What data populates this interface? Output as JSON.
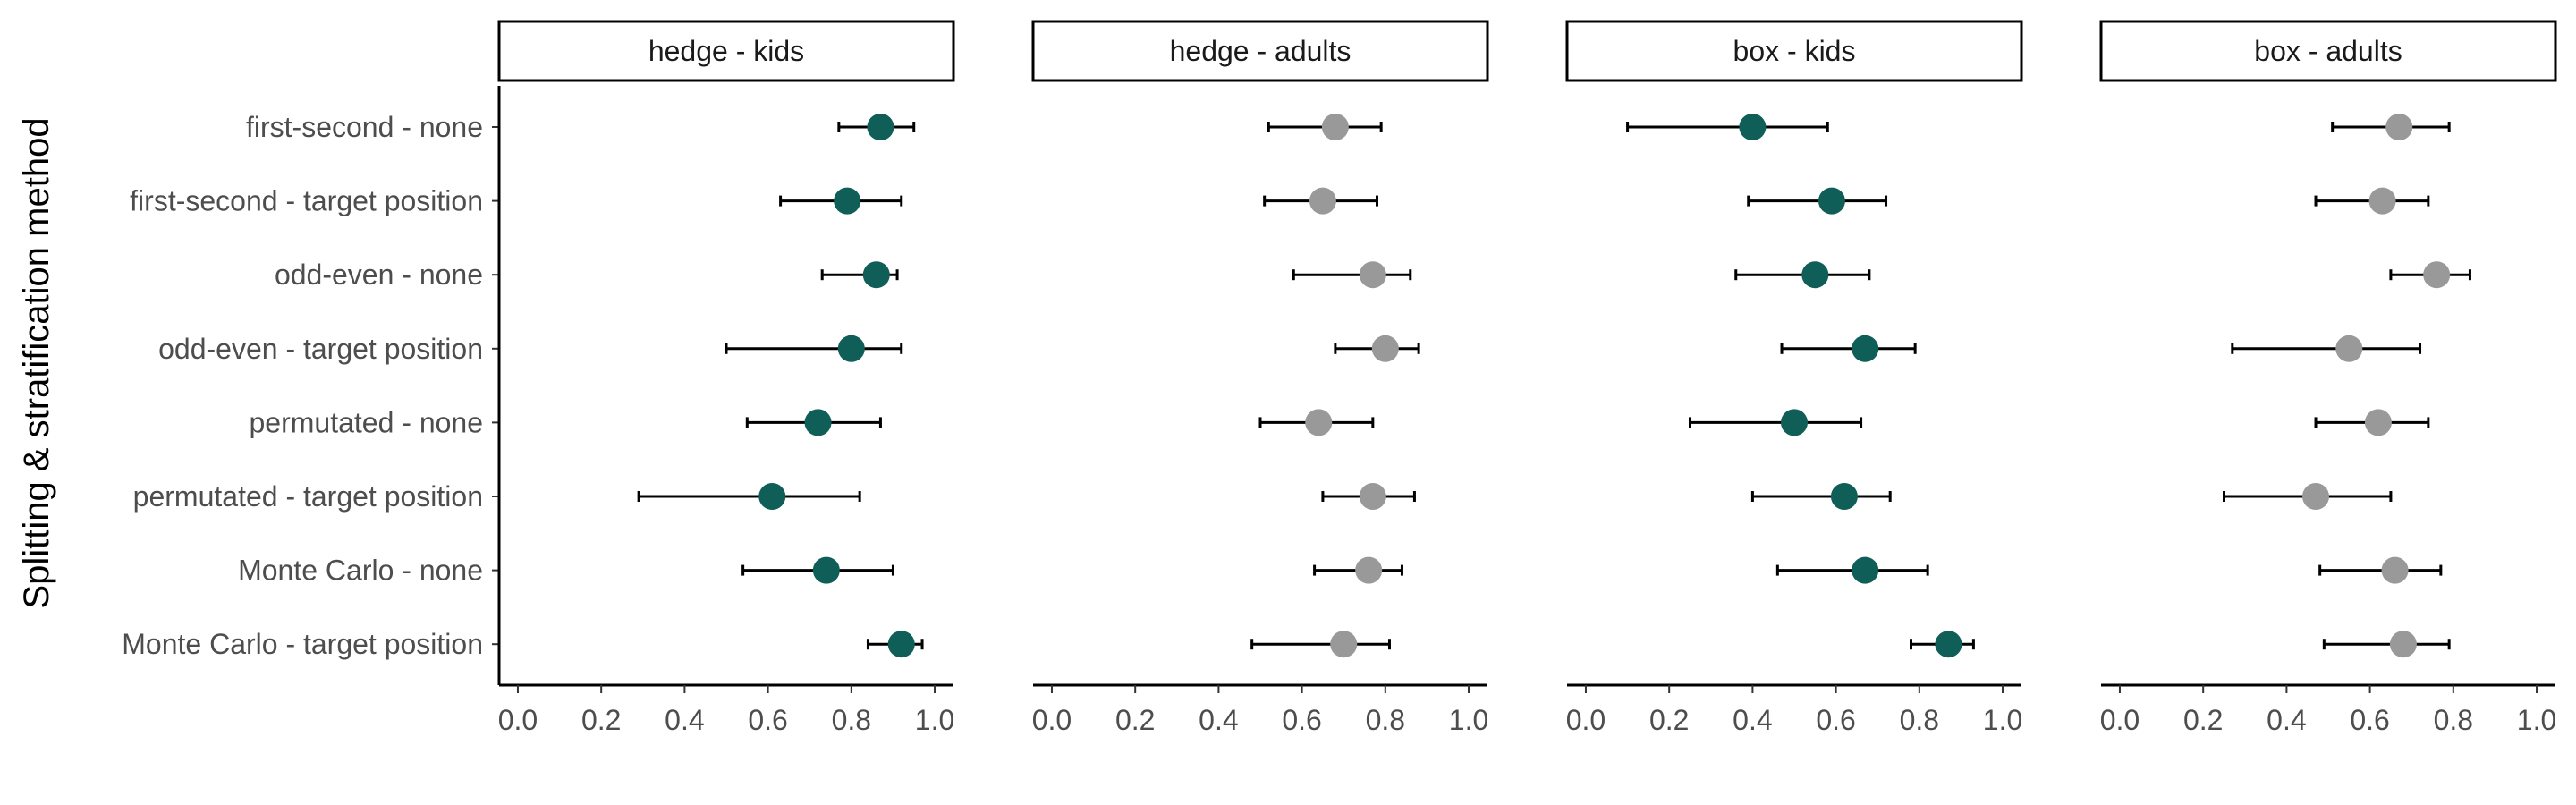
{
  "chart_data": {
    "type": "scatter",
    "ylabel": "Splitting & stratification method",
    "xlabel": "",
    "xlim": [
      0,
      1
    ],
    "x_ticks": [
      "0.0",
      "0.2",
      "0.4",
      "0.6",
      "0.8",
      "1.0"
    ],
    "categories": [
      "first-second - none",
      "first-second - target position",
      "odd-even - none",
      "odd-even - target position",
      "permutated - none",
      "permutated - target position",
      "Monte Carlo - none",
      "Monte Carlo - target position"
    ],
    "colors": {
      "kids": "#0f5e57",
      "adults": "#999999"
    },
    "grid": false,
    "legend": "none",
    "panels": [
      {
        "title": "hedge - kids",
        "group": "kids",
        "points": [
          {
            "estimate": 0.87,
            "lower": 0.77,
            "upper": 0.95
          },
          {
            "estimate": 0.79,
            "lower": 0.63,
            "upper": 0.92
          },
          {
            "estimate": 0.86,
            "lower": 0.73,
            "upper": 0.91
          },
          {
            "estimate": 0.8,
            "lower": 0.5,
            "upper": 0.92
          },
          {
            "estimate": 0.72,
            "lower": 0.55,
            "upper": 0.87
          },
          {
            "estimate": 0.61,
            "lower": 0.29,
            "upper": 0.82
          },
          {
            "estimate": 0.74,
            "lower": 0.54,
            "upper": 0.9
          },
          {
            "estimate": 0.92,
            "lower": 0.84,
            "upper": 0.97
          }
        ]
      },
      {
        "title": "hedge - adults",
        "group": "adults",
        "points": [
          {
            "estimate": 0.68,
            "lower": 0.52,
            "upper": 0.79
          },
          {
            "estimate": 0.65,
            "lower": 0.51,
            "upper": 0.78
          },
          {
            "estimate": 0.77,
            "lower": 0.58,
            "upper": 0.86
          },
          {
            "estimate": 0.8,
            "lower": 0.68,
            "upper": 0.88
          },
          {
            "estimate": 0.64,
            "lower": 0.5,
            "upper": 0.77
          },
          {
            "estimate": 0.77,
            "lower": 0.65,
            "upper": 0.87
          },
          {
            "estimate": 0.76,
            "lower": 0.63,
            "upper": 0.84
          },
          {
            "estimate": 0.7,
            "lower": 0.48,
            "upper": 0.81
          }
        ]
      },
      {
        "title": "box - kids",
        "group": "kids",
        "points": [
          {
            "estimate": 0.4,
            "lower": 0.1,
            "upper": 0.58
          },
          {
            "estimate": 0.59,
            "lower": 0.39,
            "upper": 0.72
          },
          {
            "estimate": 0.55,
            "lower": 0.36,
            "upper": 0.68
          },
          {
            "estimate": 0.67,
            "lower": 0.47,
            "upper": 0.79
          },
          {
            "estimate": 0.5,
            "lower": 0.25,
            "upper": 0.66
          },
          {
            "estimate": 0.62,
            "lower": 0.4,
            "upper": 0.73
          },
          {
            "estimate": 0.67,
            "lower": 0.46,
            "upper": 0.82
          },
          {
            "estimate": 0.87,
            "lower": 0.78,
            "upper": 0.93
          }
        ]
      },
      {
        "title": "box - adults",
        "group": "adults",
        "points": [
          {
            "estimate": 0.67,
            "lower": 0.51,
            "upper": 0.79
          },
          {
            "estimate": 0.63,
            "lower": 0.47,
            "upper": 0.74
          },
          {
            "estimate": 0.76,
            "lower": 0.65,
            "upper": 0.84
          },
          {
            "estimate": 0.55,
            "lower": 0.27,
            "upper": 0.72
          },
          {
            "estimate": 0.62,
            "lower": 0.47,
            "upper": 0.74
          },
          {
            "estimate": 0.47,
            "lower": 0.25,
            "upper": 0.65
          },
          {
            "estimate": 0.66,
            "lower": 0.48,
            "upper": 0.77
          },
          {
            "estimate": 0.68,
            "lower": 0.49,
            "upper": 0.79
          }
        ]
      }
    ]
  }
}
